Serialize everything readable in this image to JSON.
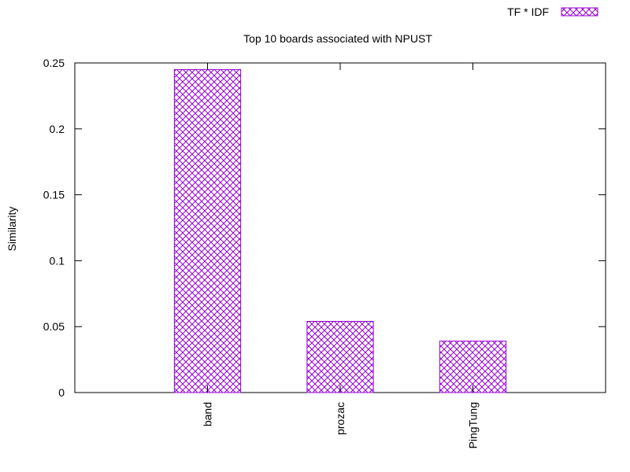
{
  "chart_data": {
    "type": "bar",
    "title": "Top 10 boards associated with NPUST",
    "xlabel": "",
    "ylabel": "Similarity",
    "categories": [
      "band",
      "prozac",
      "PingTung"
    ],
    "series": [
      {
        "name": "TF * IDF",
        "values": [
          0.245,
          0.054,
          0.039
        ]
      }
    ],
    "ylim": [
      0,
      0.25
    ],
    "yticks": [
      "0",
      "0.05",
      "0.1",
      "0.15",
      "0.2",
      "0.25"
    ],
    "grid": false,
    "legend_position": "top-right",
    "bar_color": "#9400d3",
    "bar_pattern": "crosshatch"
  }
}
